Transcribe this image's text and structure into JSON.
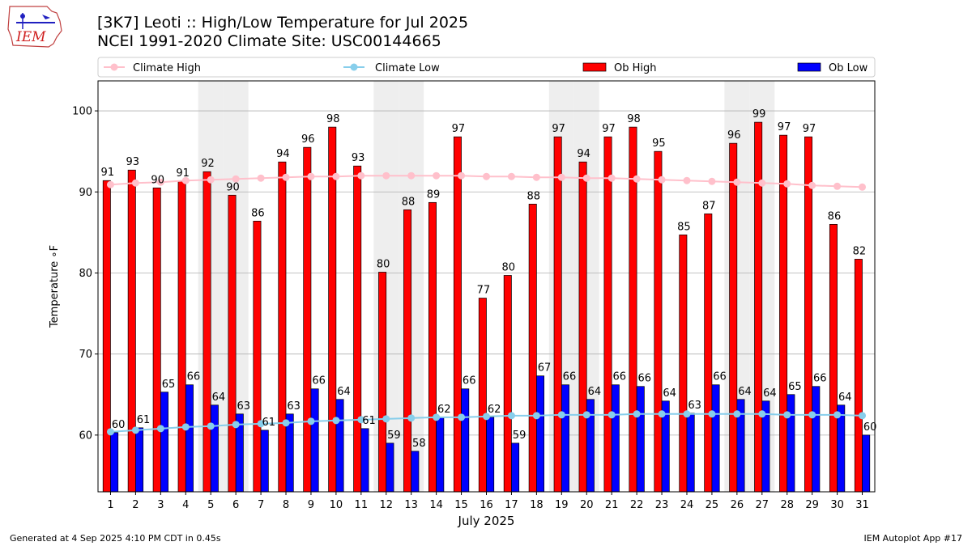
{
  "header": {
    "title": "[3K7] Leoti :: High/Low Temperature for Jul 2025",
    "subtitle": "NCEI 1991-2020 Climate Site: USC00144665",
    "logo_text": "IEM"
  },
  "footer": {
    "generated": "Generated at 4 Sep 2025 4:10 PM CDT in 0.45s",
    "app": "IEM Autoplot App #17"
  },
  "chart_data": {
    "type": "bar",
    "xlabel": "July 2025",
    "ylabel": "Temperature ∘F",
    "ylim": [
      53,
      103.7
    ],
    "yticks": [
      60,
      70,
      80,
      90,
      100
    ],
    "grid": "horizontal",
    "legend_position": "top",
    "categories": [
      "1",
      "2",
      "3",
      "4",
      "5",
      "6",
      "7",
      "8",
      "9",
      "10",
      "11",
      "12",
      "13",
      "14",
      "15",
      "16",
      "17",
      "18",
      "19",
      "20",
      "21",
      "22",
      "23",
      "24",
      "25",
      "26",
      "27",
      "28",
      "29",
      "30",
      "31"
    ],
    "weekend_days": [
      5,
      6,
      12,
      13,
      19,
      20,
      26,
      27
    ],
    "series": [
      {
        "name": "Climate High",
        "kind": "line",
        "color": "#ffc0cb",
        "values": [
          90.9,
          91.1,
          91.2,
          91.4,
          91.5,
          91.6,
          91.7,
          91.8,
          91.9,
          91.9,
          92.0,
          92.0,
          92.0,
          92.0,
          92.0,
          91.9,
          91.9,
          91.8,
          91.8,
          91.7,
          91.7,
          91.6,
          91.5,
          91.4,
          91.3,
          91.2,
          91.1,
          91.0,
          90.8,
          90.7,
          90.6
        ]
      },
      {
        "name": "Climate Low",
        "kind": "line",
        "color": "#87ceeb",
        "values": [
          60.4,
          60.6,
          60.8,
          61.0,
          61.1,
          61.3,
          61.4,
          61.5,
          61.7,
          61.8,
          61.9,
          62.0,
          62.1,
          62.2,
          62.2,
          62.3,
          62.4,
          62.4,
          62.5,
          62.5,
          62.5,
          62.6,
          62.6,
          62.6,
          62.6,
          62.6,
          62.6,
          62.5,
          62.5,
          62.5,
          62.4
        ]
      },
      {
        "name": "Ob High",
        "kind": "bar",
        "color": "#ff0000",
        "values": [
          91.4,
          92.7,
          90.5,
          91.3,
          92.5,
          89.6,
          86.4,
          93.7,
          95.5,
          98.0,
          93.2,
          80.1,
          87.8,
          88.7,
          96.8,
          76.9,
          79.7,
          88.5,
          96.8,
          93.7,
          96.8,
          98.0,
          95.0,
          84.7,
          87.3,
          96.0,
          98.6,
          97.0,
          96.8,
          86.0,
          81.7
        ]
      },
      {
        "name": "Ob Low",
        "kind": "bar",
        "color": "#0000ff",
        "values": [
          60.3,
          60.9,
          65.3,
          66.2,
          63.7,
          62.6,
          60.6,
          62.6,
          65.7,
          64.4,
          60.8,
          59.0,
          58.0,
          62.2,
          65.7,
          62.2,
          59.0,
          67.3,
          66.2,
          64.4,
          66.2,
          66.0,
          64.2,
          62.7,
          66.2,
          64.4,
          64.2,
          65.0,
          66.0,
          63.7,
          60.0
        ]
      }
    ],
    "data_labels": {
      "Ob High": [
        "91",
        "93",
        "90",
        "91",
        "92",
        "90",
        "86",
        "94",
        "96",
        "98",
        "93",
        "80",
        "88",
        "89",
        "97",
        "77",
        "80",
        "88",
        "97",
        "94",
        "97",
        "98",
        "95",
        "85",
        "87",
        "96",
        "99",
        "97",
        "97",
        "86",
        "82"
      ],
      "Ob Low": [
        "60",
        "61",
        "65",
        "66",
        "64",
        "63",
        "61",
        "63",
        "66",
        "64",
        "61",
        "59",
        "58",
        "62",
        "66",
        "62",
        "59",
        "67",
        "66",
        "64",
        "66",
        "66",
        "64",
        "63",
        "66",
        "64",
        "64",
        "65",
        "66",
        "64",
        "60"
      ]
    }
  }
}
